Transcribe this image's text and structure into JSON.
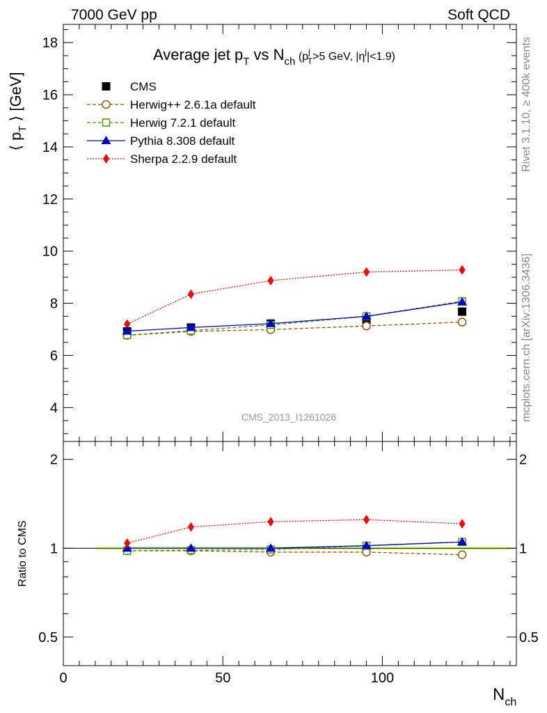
{
  "header": {
    "left": "7000 GeV pp",
    "right": "Soft QCD"
  },
  "side_labels": {
    "rivet": "Rivet 3.1.10, ≥ 400k events",
    "mcplots": "mcplots.cern.ch [arXiv:1306.3436]"
  },
  "watermark": "CMS_2013_I1261026",
  "chart_data": [
    {
      "type": "line",
      "title": {
        "main": "Average jet p",
        "main_sub": "T",
        "vs": " vs N",
        "vs_sub": "ch",
        "cut_open": " (p",
        "cut_sup": "j",
        "cut_sub": "T",
        "cut_mid": ">5 GeV, |η",
        "cut_sup2": "j",
        "cut_end": "|<1.9)"
      },
      "ylabel": "⟨ p_T ⟩ [GeV]",
      "ylabel_parts": {
        "open": "⟨ p",
        "sub": "T",
        "close": " ⟩ [GeV]"
      },
      "xlim": [
        0,
        142
      ],
      "ylim": [
        2.7,
        18.7
      ],
      "yticks": [
        "4",
        "6",
        "8",
        "10",
        "12",
        "14",
        "16",
        "18"
      ],
      "legend_position": "top-left",
      "x": [
        20,
        40,
        65,
        95,
        125
      ],
      "series": [
        {
          "name": "CMS",
          "values": [
            6.92,
            7.07,
            7.22,
            7.37,
            7.68
          ],
          "color": "#000000",
          "marker": "filled-square",
          "line": "none"
        },
        {
          "name": "Herwig++ 2.6.1a default",
          "values": [
            6.77,
            6.92,
            6.99,
            7.13,
            7.28
          ],
          "color": "#a05000",
          "marker": "open-circle",
          "line": "dashed"
        },
        {
          "name": "Herwig 7.2.1 default",
          "values": [
            6.78,
            6.95,
            7.17,
            7.5,
            8.08
          ],
          "color": "#4a9a00",
          "marker": "open-square",
          "line": "dashed"
        },
        {
          "name": "Pythia 8.308 default",
          "values": [
            6.93,
            7.07,
            7.22,
            7.5,
            8.05
          ],
          "color": "#0000cc",
          "marker": "filled-triangle",
          "line": "solid"
        },
        {
          "name": "Sherpa 2.2.9 default",
          "values": [
            7.2,
            8.35,
            8.87,
            9.2,
            9.28
          ],
          "color": "#ff0000",
          "marker": "filled-diamond",
          "line": "dotted"
        }
      ]
    },
    {
      "type": "line",
      "ylabel": "Ratio to CMS",
      "xlabel": "N_ch",
      "xlabel_parts": {
        "main": "N",
        "sub": "ch"
      },
      "xlim": [
        0,
        142
      ],
      "ylim": [
        0.4,
        2.3
      ],
      "yticks": [
        "0.5",
        "1",
        "2"
      ],
      "yticks_right": [
        "0.5",
        "1",
        "2"
      ],
      "xticks": [
        "0",
        "50",
        "100"
      ],
      "x": [
        20,
        40,
        65,
        95,
        125
      ],
      "band": {
        "x_start": 10,
        "x_end": 140,
        "halfwidth": 0.015,
        "color": "#ddff88"
      },
      "series": [
        {
          "name": "Herwig++ 2.6.1a default",
          "values": [
            0.98,
            0.98,
            0.97,
            0.97,
            0.95
          ]
        },
        {
          "name": "Herwig 7.2.1 default",
          "values": [
            0.98,
            0.985,
            0.99,
            1.02,
            1.05
          ]
        },
        {
          "name": "Pythia 8.308 default",
          "values": [
            1.0,
            1.0,
            1.0,
            1.02,
            1.05
          ]
        },
        {
          "name": "Sherpa 2.2.9 default",
          "values": [
            1.04,
            1.18,
            1.23,
            1.25,
            1.21
          ]
        }
      ]
    }
  ]
}
